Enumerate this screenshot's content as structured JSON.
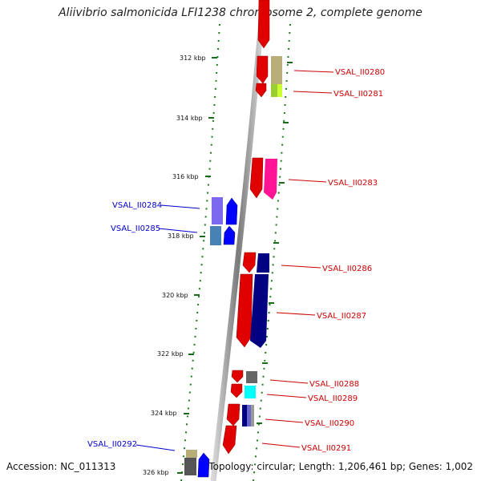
{
  "title": "Aliivibrio salmonicida LFI1238 chromosome 2, complete genome",
  "footer": {
    "accession": "Accession: NC_011313",
    "summary": "Topology: circular; Length: 1,206,461 bp; Genes: 1,002"
  },
  "scale_ticks": [
    "312 kbp",
    "314 kbp",
    "316 kbp",
    "318 kbp",
    "320 kbp",
    "322 kbp",
    "324 kbp",
    "326 kbp"
  ],
  "genes": [
    {
      "label": "VSAL_II0280",
      "strand": "forward",
      "color": "#cc0000"
    },
    {
      "label": "VSAL_II0281",
      "strand": "forward",
      "color": "#cc0000"
    },
    {
      "label": "VSAL_II0283",
      "strand": "forward",
      "color": "#cc0000"
    },
    {
      "label": "VSAL_II0284",
      "strand": "reverse",
      "color": "#0000cc"
    },
    {
      "label": "VSAL_II0285",
      "strand": "reverse",
      "color": "#0000cc"
    },
    {
      "label": "VSAL_II0286",
      "strand": "forward",
      "color": "#cc0000"
    },
    {
      "label": "VSAL_II0287",
      "strand": "forward",
      "color": "#cc0000"
    },
    {
      "label": "VSAL_II0288",
      "strand": "forward",
      "color": "#cc0000"
    },
    {
      "label": "VSAL_II0289",
      "strand": "forward",
      "color": "#cc0000"
    },
    {
      "label": "VSAL_II0290",
      "strand": "forward",
      "color": "#cc0000"
    },
    {
      "label": "VSAL_II0291",
      "strand": "forward",
      "color": "#cc0000"
    },
    {
      "label": "VSAL_II0292",
      "strand": "reverse",
      "color": "#0000cc"
    }
  ]
}
